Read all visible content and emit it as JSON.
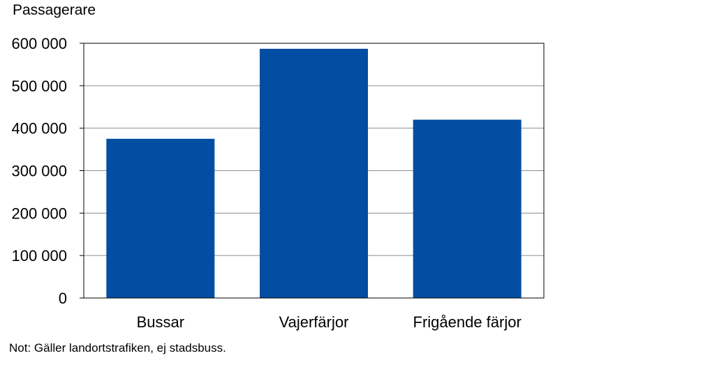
{
  "chart_data": {
    "type": "bar",
    "categories": [
      "Bussar",
      "Vajerfärjor",
      "Frigående färjor"
    ],
    "values": [
      375000,
      587000,
      420000
    ],
    "ylabel": "Passagerare",
    "ylim": [
      0,
      600000
    ],
    "yticks": [
      0,
      100000,
      200000,
      300000,
      400000,
      500000,
      600000
    ],
    "ytick_labels": [
      "0",
      "100 000",
      "200 000",
      "300 000",
      "400 000",
      "500 000",
      "600 000"
    ],
    "grid": true,
    "bar_color": "#034EA2",
    "note": "Not: Gäller landortstrafiken, ej stadsbuss."
  }
}
